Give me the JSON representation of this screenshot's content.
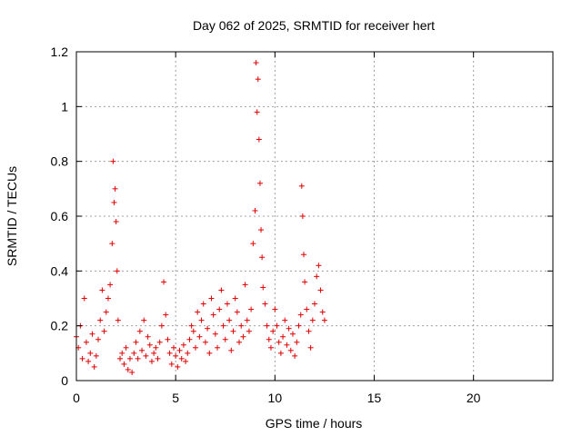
{
  "chart_data": {
    "type": "scatter",
    "title": "Day 062 of 2025, SRMTID for receiver hert",
    "xlabel": "GPS time / hours",
    "ylabel": "SRMTID / TECUs",
    "xlim": [
      0,
      24
    ],
    "ylim": [
      0,
      1.2
    ],
    "xticks": [
      0,
      5,
      10,
      15,
      20
    ],
    "xtick_labels": [
      "0",
      "5",
      "10",
      "15",
      "20"
    ],
    "yticks": [
      0,
      0.2,
      0.4,
      0.6,
      0.8,
      1.0,
      1.2
    ],
    "ytick_labels": [
      "0",
      "0.2",
      "0.4",
      "0.6",
      "0.8",
      "1",
      "1.2"
    ],
    "grid": true,
    "marker": "+",
    "color": "#e00000",
    "series": [
      {
        "name": "SRMTID",
        "x": [
          0.0,
          0.1,
          0.2,
          0.3,
          0.4,
          0.5,
          0.6,
          0.7,
          0.8,
          0.9,
          1.0,
          1.1,
          1.2,
          1.3,
          1.4,
          1.5,
          1.6,
          1.7,
          1.8,
          1.85,
          1.9,
          1.95,
          2.0,
          2.05,
          2.1,
          2.2,
          2.3,
          2.4,
          2.5,
          2.6,
          2.7,
          2.8,
          2.9,
          3.0,
          3.1,
          3.2,
          3.3,
          3.4,
          3.5,
          3.6,
          3.7,
          3.8,
          3.9,
          4.0,
          4.1,
          4.2,
          4.3,
          4.4,
          4.5,
          4.6,
          4.7,
          4.8,
          4.9,
          5.0,
          5.1,
          5.2,
          5.3,
          5.4,
          5.5,
          5.6,
          5.7,
          5.8,
          5.9,
          6.0,
          6.1,
          6.2,
          6.3,
          6.4,
          6.5,
          6.6,
          6.7,
          6.8,
          6.9,
          7.0,
          7.1,
          7.2,
          7.3,
          7.4,
          7.5,
          7.6,
          7.7,
          7.8,
          7.9,
          8.0,
          8.1,
          8.2,
          8.3,
          8.4,
          8.5,
          8.6,
          8.7,
          8.8,
          8.9,
          9.0,
          9.05,
          9.1,
          9.15,
          9.2,
          9.25,
          9.3,
          9.35,
          9.4,
          9.5,
          9.6,
          9.7,
          9.8,
          9.9,
          10.0,
          10.1,
          10.2,
          10.3,
          10.4,
          10.5,
          10.6,
          10.7,
          10.8,
          10.9,
          11.0,
          11.1,
          11.2,
          11.3,
          11.35,
          11.4,
          11.45,
          11.5,
          11.6,
          11.7,
          11.8,
          11.9,
          12.0,
          12.1,
          12.2,
          12.3,
          12.4,
          12.5
        ],
        "y": [
          0.16,
          0.12,
          0.2,
          0.08,
          0.3,
          0.14,
          0.07,
          0.1,
          0.17,
          0.05,
          0.09,
          0.15,
          0.22,
          0.33,
          0.18,
          0.25,
          0.3,
          0.35,
          0.5,
          0.8,
          0.65,
          0.7,
          0.58,
          0.4,
          0.22,
          0.08,
          0.1,
          0.06,
          0.12,
          0.04,
          0.08,
          0.03,
          0.1,
          0.14,
          0.08,
          0.18,
          0.11,
          0.22,
          0.09,
          0.16,
          0.13,
          0.07,
          0.1,
          0.12,
          0.08,
          0.14,
          0.2,
          0.36,
          0.24,
          0.15,
          0.1,
          0.06,
          0.12,
          0.09,
          0.05,
          0.11,
          0.08,
          0.13,
          0.07,
          0.1,
          0.15,
          0.2,
          0.18,
          0.12,
          0.25,
          0.16,
          0.22,
          0.28,
          0.14,
          0.19,
          0.1,
          0.3,
          0.24,
          0.17,
          0.12,
          0.26,
          0.33,
          0.2,
          0.15,
          0.28,
          0.22,
          0.11,
          0.18,
          0.3,
          0.25,
          0.14,
          0.2,
          0.16,
          0.35,
          0.22,
          0.18,
          0.26,
          0.5,
          0.62,
          1.16,
          0.98,
          1.1,
          0.88,
          0.72,
          0.55,
          0.45,
          0.34,
          0.28,
          0.2,
          0.15,
          0.12,
          0.18,
          0.26,
          0.2,
          0.14,
          0.1,
          0.16,
          0.22,
          0.13,
          0.19,
          0.11,
          0.17,
          0.09,
          0.14,
          0.2,
          0.24,
          0.71,
          0.6,
          0.46,
          0.36,
          0.26,
          0.18,
          0.12,
          0.22,
          0.28,
          0.38,
          0.42,
          0.33,
          0.25,
          0.22
        ]
      }
    ]
  }
}
